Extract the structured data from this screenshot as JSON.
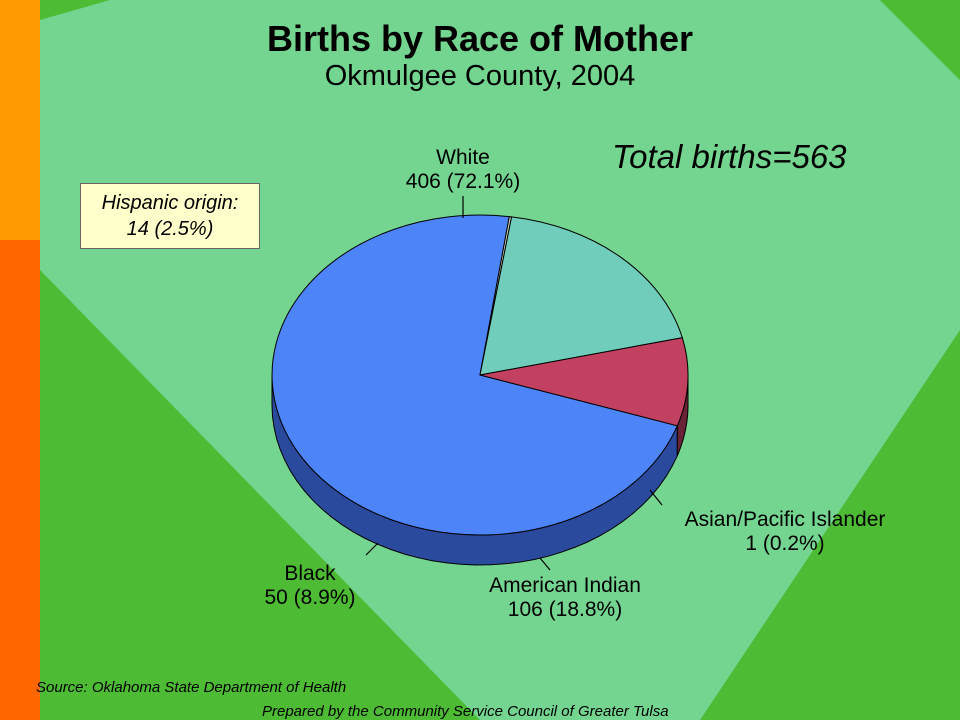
{
  "chart_data": {
    "type": "pie",
    "title": "Births by Race of Mother",
    "subtitle": "Okmulgee County, 2004",
    "total_label": "Total births=563",
    "note": [
      "Hispanic origin:",
      "14 (2.5%)"
    ],
    "slices": [
      {
        "name": "White",
        "value": 406,
        "percent_label": "406  (72.1%)",
        "color": "#4d84f8",
        "side_color": "#2a4a9e"
      },
      {
        "name": "Asian/Pacific Islander",
        "value": 1,
        "percent_label": "1  (0.2%)",
        "color": "#c8d8c0",
        "side_color": "#6f7e6a"
      },
      {
        "name": "American Indian",
        "value": 106,
        "percent_label": "106  (18.8%)",
        "color": "#70cdbb",
        "side_color": "#3e7068"
      },
      {
        "name": "Black",
        "value": 50,
        "percent_label": "50  (8.9%)",
        "color": "#c24060",
        "side_color": "#6a2236"
      }
    ]
  },
  "footer": {
    "source": "Source:  Oklahoma State Department of Health",
    "prepared": "Prepared by the Community Service Council of Greater Tulsa"
  },
  "colors": {
    "background_green": "#4dbb33",
    "diamond_green": "#7ad9a0",
    "side_bar_top": "#ff9900",
    "side_bar_bottom": "#ff6600",
    "note_bg": "#ffffcc"
  }
}
